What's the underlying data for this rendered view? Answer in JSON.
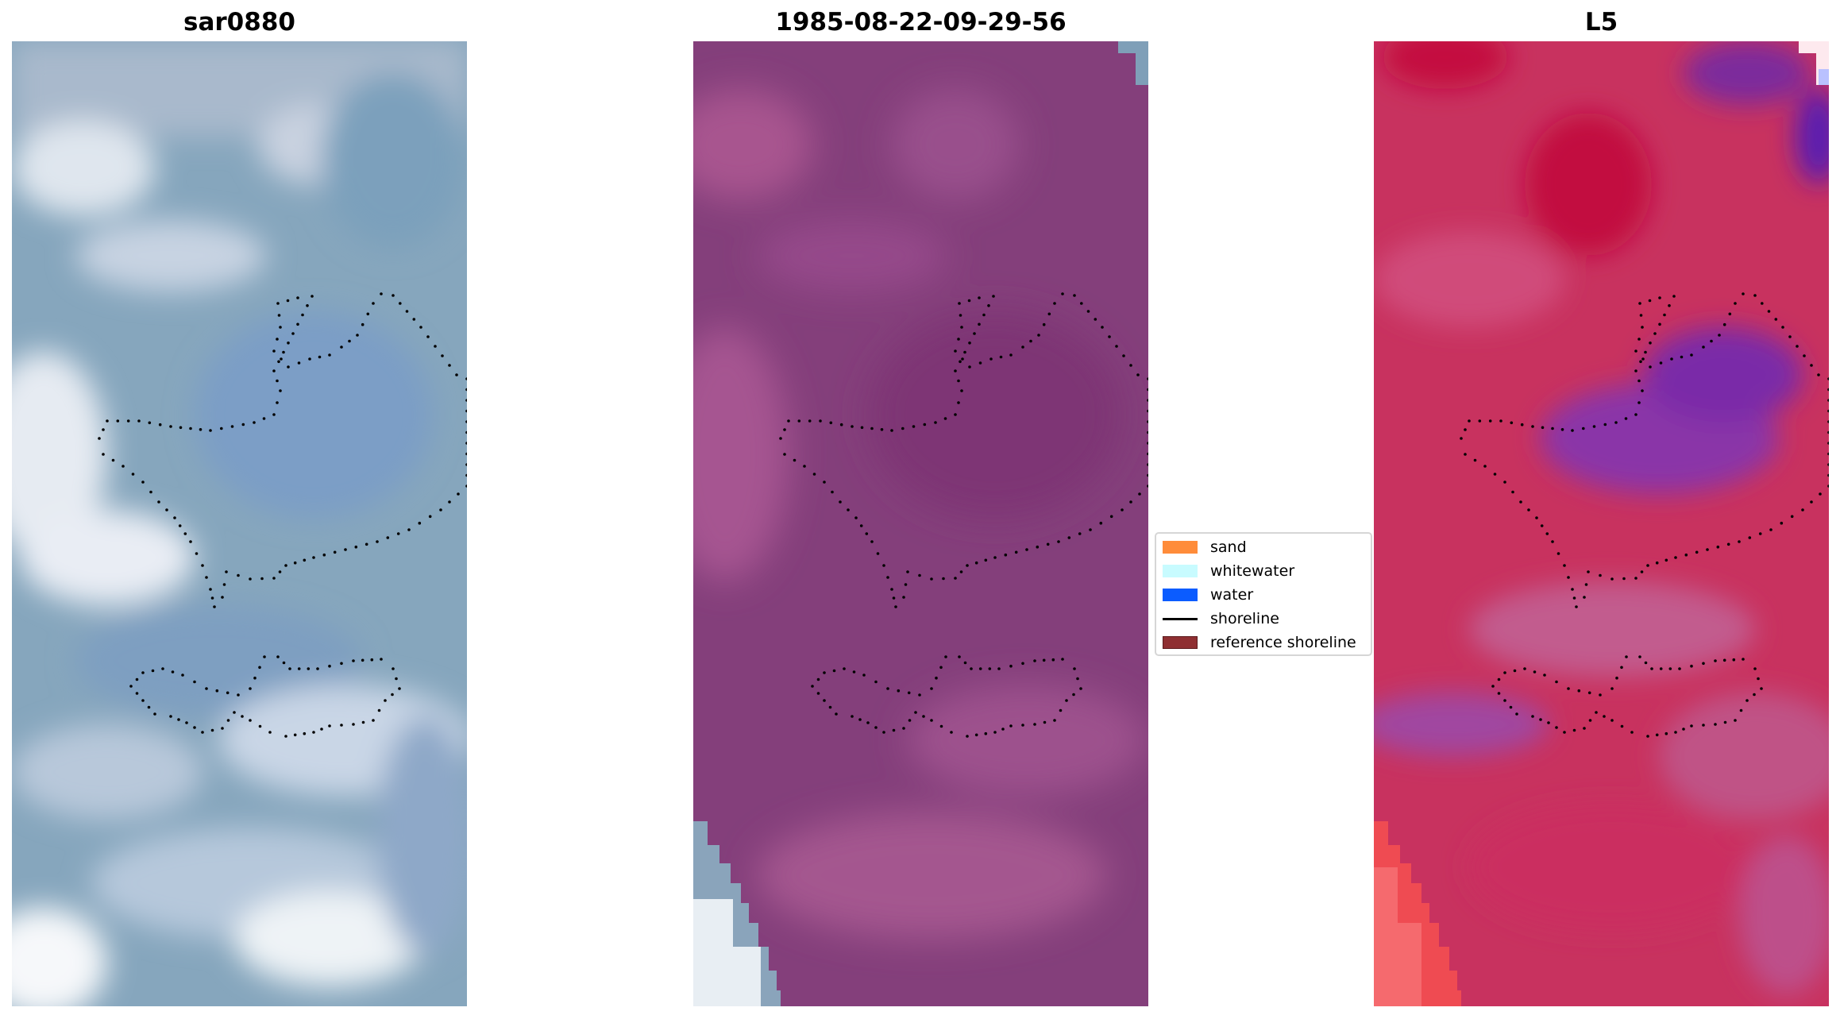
{
  "panels": [
    {
      "title": "sar0880"
    },
    {
      "title": "1985-08-22-09-29-56"
    },
    {
      "title": "L5"
    }
  ],
  "legend": {
    "items": [
      {
        "label": "sand",
        "color": "#ff8c3a",
        "kind": "patch"
      },
      {
        "label": "whitewater",
        "color": "#c8fbff",
        "kind": "patch"
      },
      {
        "label": "water",
        "color": "#0b5cff",
        "kind": "patch"
      },
      {
        "label": "shoreline",
        "color": "#000000",
        "kind": "line"
      },
      {
        "label": "reference shoreline",
        "color": "#8f2f32",
        "kind": "patch"
      }
    ]
  },
  "colors": {
    "rgb_panel_base": "#7f9fb8",
    "composite_panel_base": "#7e3876",
    "index_panel_base": "#c82a5c",
    "shoreline_dots": "#000000"
  }
}
